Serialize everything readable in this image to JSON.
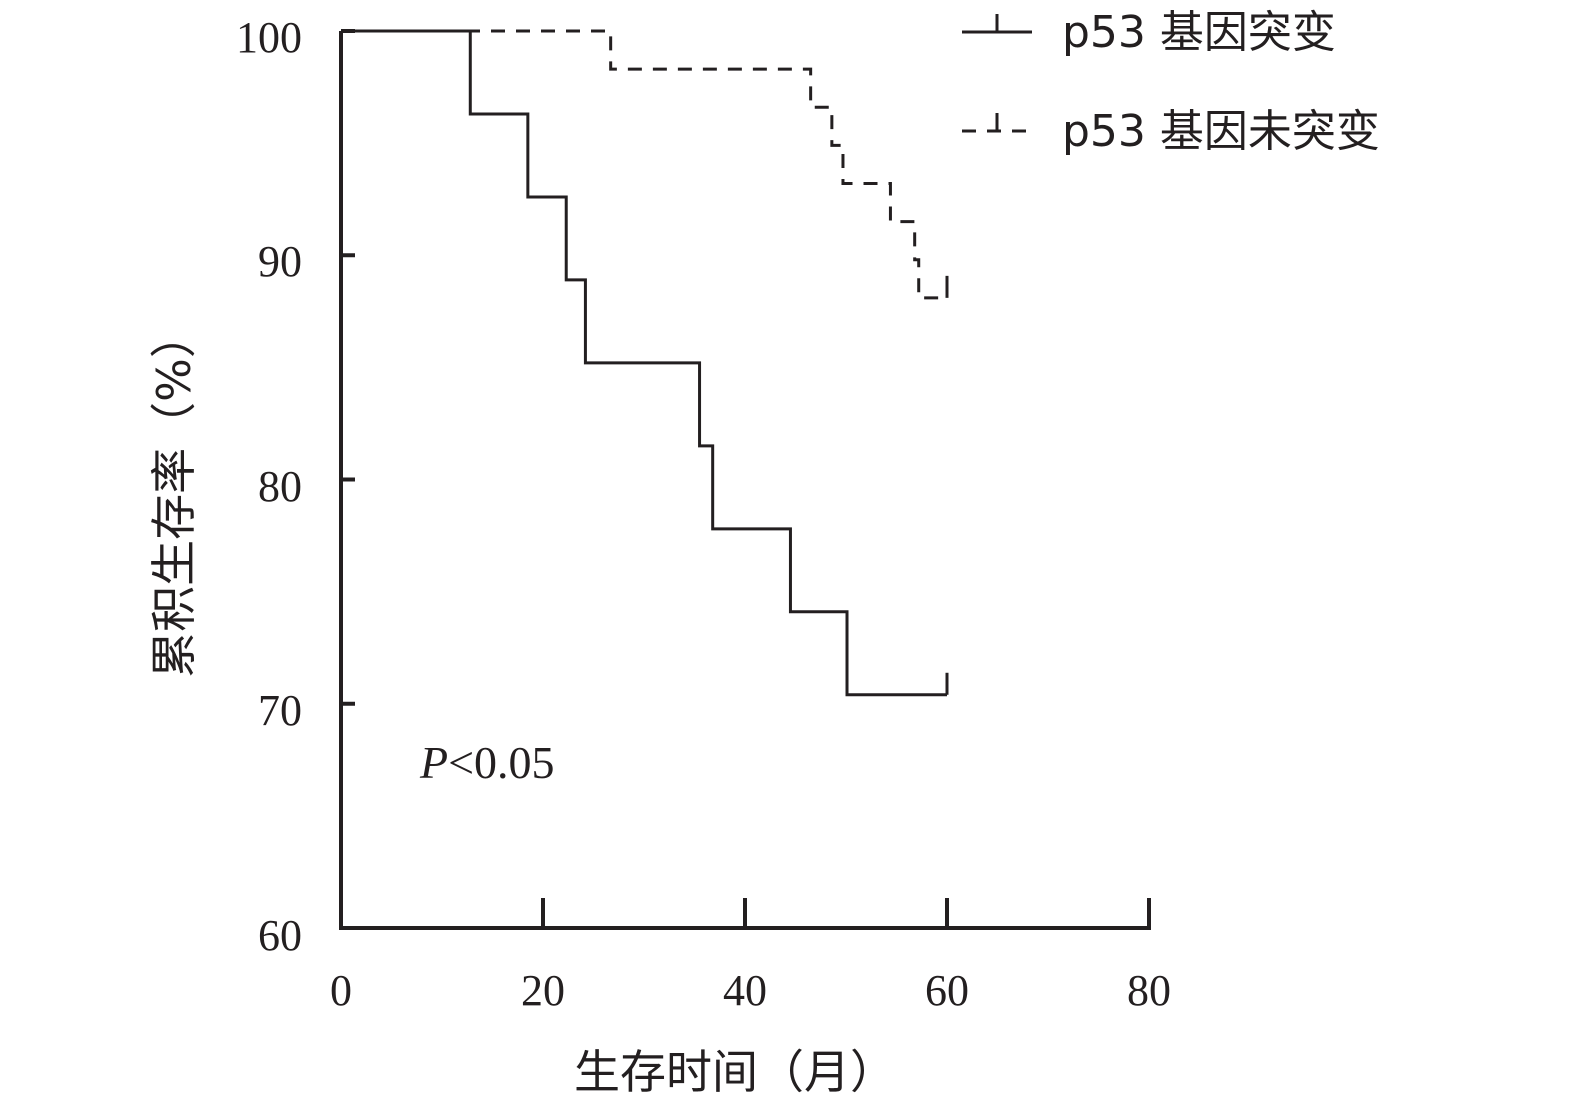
{
  "chart_data": {
    "type": "line",
    "title": "",
    "xlabel": "生存时间（月）",
    "ylabel": "累积生存率（%）",
    "xlim": [
      0,
      80
    ],
    "ylim": [
      60,
      100
    ],
    "x_ticks": [
      "0",
      "20",
      "40",
      "60",
      "80"
    ],
    "y_ticks": [
      "60",
      "70",
      "80",
      "90",
      "100"
    ],
    "grid": false,
    "legend_position": "top-right",
    "annotation": {
      "p_italic": "P",
      "p_rest": "<0.05"
    },
    "series": [
      {
        "name": "p53 基因突变",
        "style": "solid",
        "color": "#231f20",
        "x": [
          0,
          12.8,
          18.5,
          22.3,
          24.2,
          35.5,
          36.8,
          44.5,
          50.1,
          60
        ],
        "y": [
          100,
          96.3,
          92.6,
          88.9,
          85.2,
          81.5,
          77.8,
          74.1,
          70.4,
          70.4
        ],
        "censor_x": [
          60
        ],
        "censor_y": [
          70.4
        ]
      },
      {
        "name": "p53 基因未突变",
        "style": "dashed",
        "color": "#231f20",
        "x": [
          0,
          26.7,
          46.5,
          48.6,
          49.7,
          54.4,
          56.8,
          57.2,
          60
        ],
        "y": [
          100,
          98.3,
          96.6,
          94.9,
          93.2,
          91.5,
          89.8,
          88.1,
          88.1
        ],
        "censor_x": [
          60
        ],
        "censor_y": [
          88.1
        ]
      }
    ]
  }
}
